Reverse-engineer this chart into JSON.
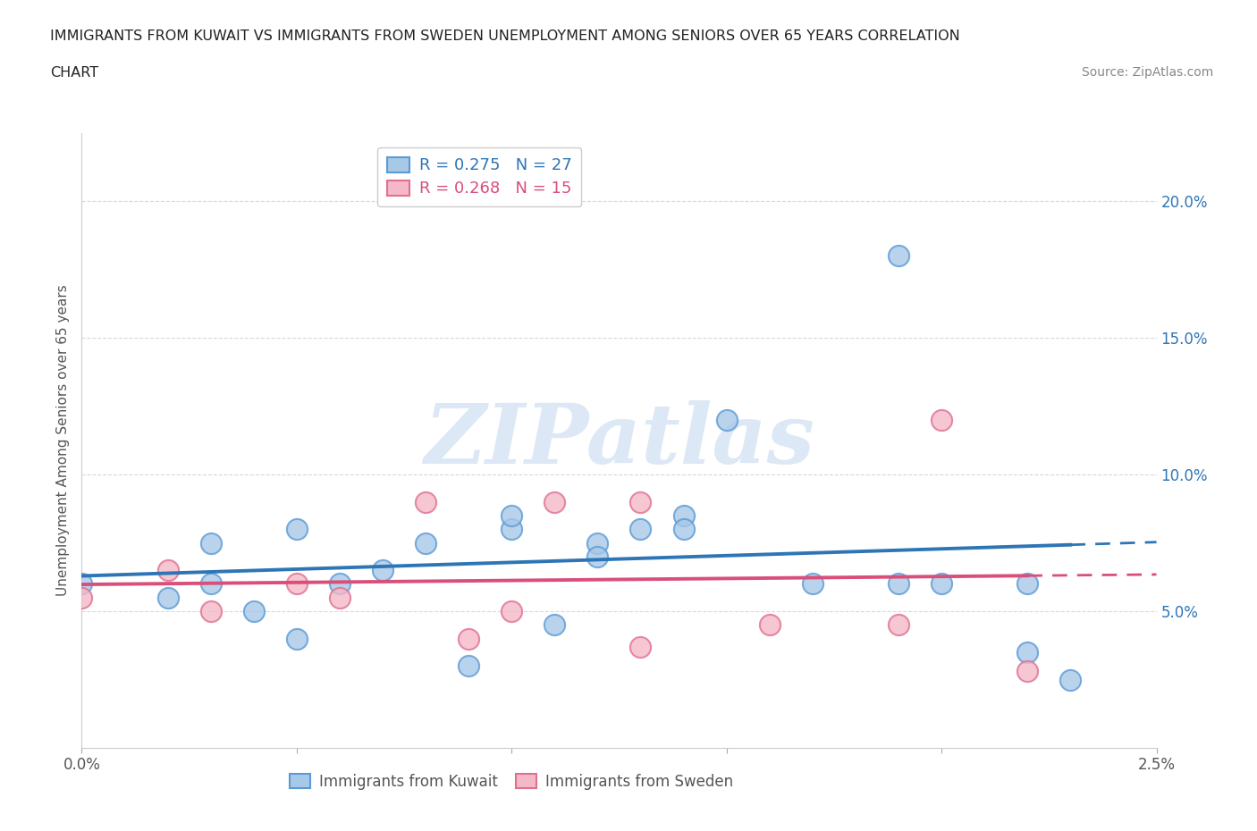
{
  "title_line1": "IMMIGRANTS FROM KUWAIT VS IMMIGRANTS FROM SWEDEN UNEMPLOYMENT AMONG SENIORS OVER 65 YEARS CORRELATION",
  "title_line2": "CHART",
  "source": "Source: ZipAtlas.com",
  "ylabel": "Unemployment Among Seniors over 65 years",
  "legend_label_kuwait": "Immigrants from Kuwait",
  "legend_label_sweden": "Immigrants from Sweden",
  "kuwait_color_fill": "#a8c8e8",
  "kuwait_color_edge": "#5b9bd5",
  "kuwait_line_color": "#2e75b6",
  "sweden_color_fill": "#f4b8c8",
  "sweden_color_edge": "#e07090",
  "sweden_line_color": "#d94f7a",
  "kuwait_x": [
    0.0,
    0.0002,
    0.0003,
    0.0003,
    0.0004,
    0.0005,
    0.0005,
    0.0006,
    0.0007,
    0.0008,
    0.0009,
    0.001,
    0.0011,
    0.0012,
    0.0012,
    0.0013,
    0.0014,
    0.0014,
    0.0015,
    0.0017,
    0.0019,
    0.0019,
    0.0022,
    0.0022,
    0.0023,
    0.001,
    0.002
  ],
  "kuwait_y": [
    0.06,
    0.055,
    0.06,
    0.075,
    0.05,
    0.04,
    0.08,
    0.06,
    0.065,
    0.075,
    0.03,
    0.08,
    0.045,
    0.075,
    0.07,
    0.08,
    0.085,
    0.08,
    0.12,
    0.06,
    0.06,
    0.18,
    0.06,
    0.035,
    0.025,
    0.085,
    0.06
  ],
  "sweden_x": [
    0.0,
    0.0002,
    0.0003,
    0.0005,
    0.0006,
    0.0008,
    0.0009,
    0.001,
    0.0011,
    0.0013,
    0.0016,
    0.0019,
    0.002,
    0.0022,
    0.0013
  ],
  "sweden_y": [
    0.055,
    0.065,
    0.05,
    0.06,
    0.055,
    0.09,
    0.04,
    0.05,
    0.09,
    0.09,
    0.045,
    0.045,
    0.12,
    0.028,
    0.037
  ],
  "kuwait_R": 0.275,
  "kuwait_N": 27,
  "sweden_R": 0.268,
  "sweden_N": 15,
  "xlim": [
    0.0,
    0.0025
  ],
  "ylim": [
    0.0,
    0.225
  ],
  "yticks": [
    0.05,
    0.1,
    0.15,
    0.2
  ],
  "ytick_labels_right": [
    "5.0%",
    "10.0%",
    "15.0%",
    "20.0%"
  ],
  "xticks": [
    0.0,
    0.0005,
    0.001,
    0.0015,
    0.002,
    0.0025
  ],
  "xtick_labels": [
    "0.0%",
    "",
    "",
    "",
    "",
    "2.5%"
  ],
  "background_color": "#ffffff",
  "grid_color": "#d0d0d0",
  "watermark_text": "ZIPatlas",
  "watermark_color": "#dce8f5",
  "right_tick_color": "#2e75b6"
}
